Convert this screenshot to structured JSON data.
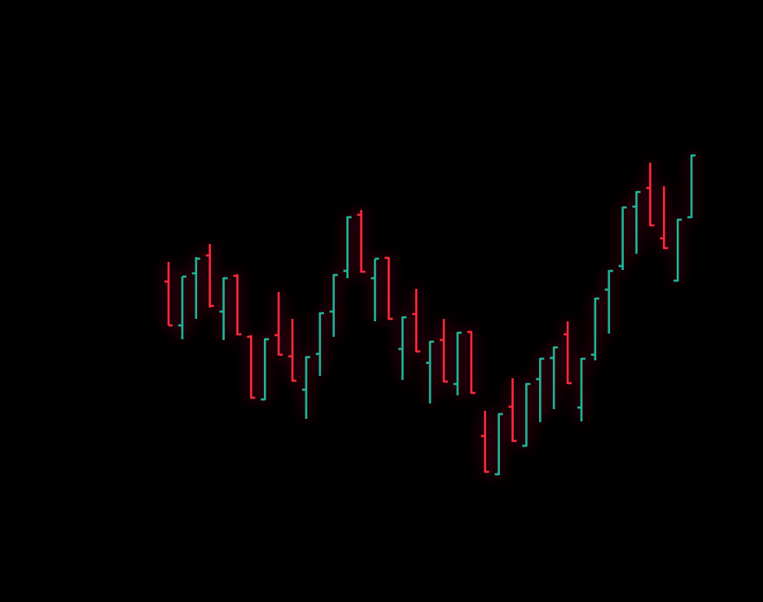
{
  "chart_data": {
    "type": "ohlc",
    "open": [
      394,
      340,
      404,
      426,
      357,
      401,
      326,
      249,
      328,
      302,
      261,
      305,
      357,
      407,
      476,
      398,
      423,
      311,
      354,
      294,
      322,
      268,
      332,
      204,
      157,
      240,
      192,
      274,
      300,
      329,
      239,
      304,
      384,
      413,
      486,
      509,
      447,
      395,
      473
    ],
    "high": [
      418,
      400,
      424,
      440,
      399,
      403,
      328,
      324,
      381,
      348,
      302,
      356,
      403,
      474,
      482,
      422,
      424,
      351,
      385,
      321,
      348,
      332,
      333,
      235,
      232,
      275,
      269,
      300,
      314,
      345,
      300,
      374,
      408,
      486,
      505,
      540,
      511,
      471,
      550
    ],
    "low": [
      340,
      323,
      348,
      362,
      322,
      328,
      250,
      248,
      303,
      271,
      225,
      278,
      326,
      398,
      405,
      345,
      347,
      273,
      307,
      244,
      270,
      254,
      256,
      159,
      156,
      197,
      191,
      221,
      237,
      268,
      222,
      297,
      330,
      408,
      428,
      462,
      434,
      394,
      472
    ],
    "close": [
      340,
      400,
      422,
      364,
      398,
      329,
      251,
      323,
      304,
      272,
      301,
      355,
      402,
      473,
      406,
      422,
      348,
      350,
      308,
      320,
      271,
      331,
      257,
      160,
      231,
      198,
      268,
      299,
      313,
      269,
      299,
      373,
      407,
      485,
      504,
      463,
      435,
      470,
      549
    ],
    "up_color": "#1fb59b",
    "down_color": "#ff2b3c",
    "ylim": [
      0,
      740
    ]
  }
}
